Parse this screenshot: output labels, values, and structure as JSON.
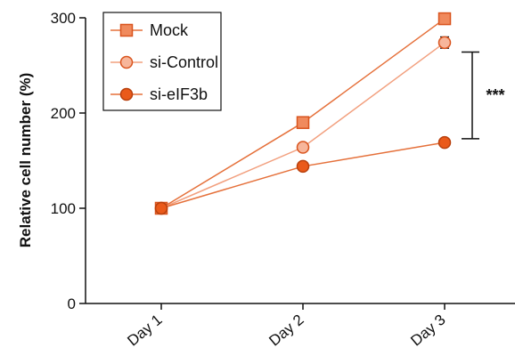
{
  "chart_data": {
    "type": "line",
    "categories": [
      "Day 1",
      "Day 2",
      "Day 3"
    ],
    "ylabel": "Relative cell number (%)",
    "ylim": [
      0,
      300
    ],
    "yticks": [
      "0",
      "100",
      "200",
      "300"
    ],
    "grid": false,
    "legend_position": "top-left",
    "series": [
      {
        "name": "Mock",
        "values": [
          100,
          190,
          299
        ],
        "marker": "square",
        "fill": "#f08a5d",
        "stroke": "#d9541e",
        "line": "#e5703a",
        "errors": [
          0,
          0,
          2
        ]
      },
      {
        "name": "si-Control",
        "values": [
          100,
          164,
          274
        ],
        "marker": "circle",
        "fill": "#f7b69b",
        "stroke": "#d9541e",
        "line": "#f2a07f",
        "errors": [
          0,
          0,
          6
        ]
      },
      {
        "name": "si-eIF3b",
        "values": [
          100,
          144,
          169
        ],
        "marker": "circle",
        "fill": "#ea5a1a",
        "stroke": "#b8400d",
        "line": "#e5703a",
        "errors": [
          0,
          0,
          0
        ]
      }
    ],
    "annotation": {
      "text": "***",
      "from": 264,
      "to": 173
    }
  }
}
